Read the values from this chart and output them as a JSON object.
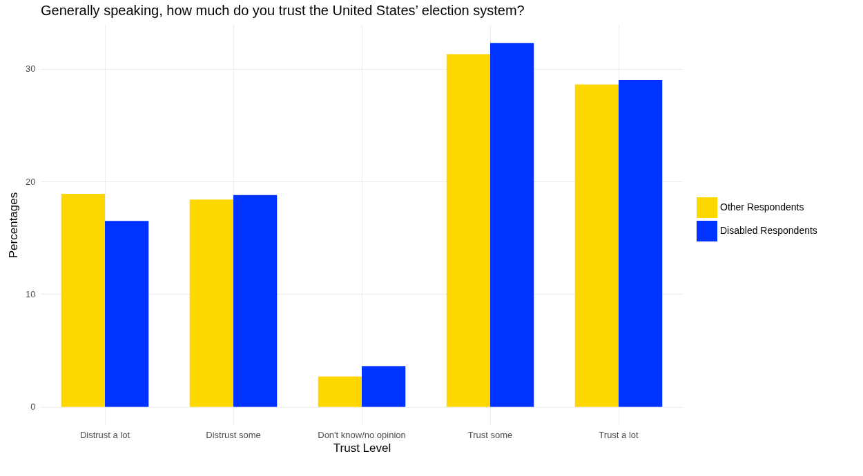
{
  "chart_data": {
    "type": "bar",
    "title": "Generally speaking, how much do you trust the United States’ election system?",
    "xlabel": "Trust Level",
    "ylabel": "Percentages",
    "categories": [
      "Distrust a lot",
      "Distrust some",
      "Don't know/no opinion",
      "Trust some",
      "Trust a lot"
    ],
    "series": [
      {
        "name": "Other Respondents",
        "color": "#ffd700",
        "values": [
          18.9,
          18.4,
          2.7,
          31.3,
          28.6
        ]
      },
      {
        "name": "Disabled Respondents",
        "color": "#0033ff",
        "values": [
          16.5,
          18.8,
          3.6,
          32.3,
          29.0
        ]
      }
    ],
    "ylim": [
      -1.6,
      33.9
    ],
    "yticks": [
      0,
      10,
      20,
      30
    ],
    "grid": true,
    "legend": "right"
  }
}
